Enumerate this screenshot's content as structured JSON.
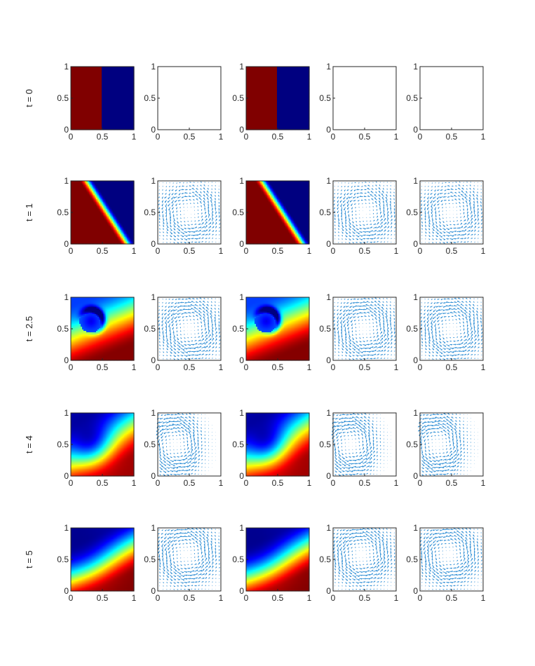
{
  "chart_data": {
    "type": "heatmap",
    "description_rows": "Grid of 5 rows (time steps) by 5 columns of unit-square panels: columns 1 and 3 are color fields (jet colormap), columns 2, 4, 5 are velocity quiver plots.",
    "row_labels": [
      "t = 0",
      "t = 1",
      "t = 2.5",
      "t = 4",
      "t = 5"
    ],
    "times": [
      0,
      1,
      2.5,
      4,
      5
    ],
    "columns": [
      "field",
      "quiver",
      "field",
      "quiver",
      "quiver"
    ],
    "xlim": [
      0,
      1
    ],
    "ylim": [
      0,
      1
    ],
    "x_ticks": [
      "0",
      "0.5",
      "1"
    ],
    "y_ticks": [
      "0",
      "0.5",
      "1"
    ],
    "colormap": "jet",
    "quiver_color": "#2b8cd4",
    "axis_color": "#262626",
    "grid": false
  }
}
